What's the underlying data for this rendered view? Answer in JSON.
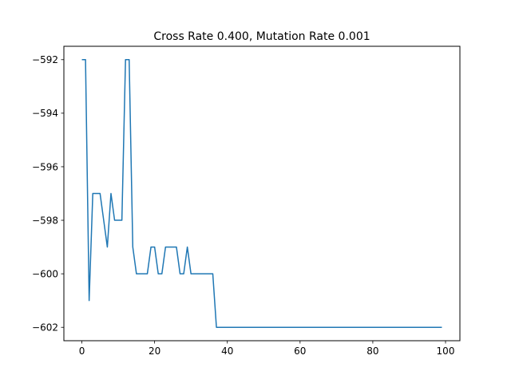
{
  "chart_data": {
    "type": "line",
    "title": "Cross Rate 0.400, Mutation Rate 0.001",
    "xlabel": "",
    "ylabel": "",
    "xlim": [
      -4.95,
      103.95
    ],
    "ylim": [
      -602.5,
      -591.5
    ],
    "xticks": [
      0,
      20,
      40,
      60,
      80,
      100
    ],
    "yticks": [
      -592,
      -594,
      -596,
      -598,
      -600,
      -602
    ],
    "xtick_labels": [
      "0",
      "20",
      "40",
      "60",
      "80",
      "100"
    ],
    "ytick_labels": [
      "−592",
      "−594",
      "−596",
      "−598",
      "−600",
      "−602"
    ],
    "grid": false,
    "line_color": "#1f77b4",
    "series": [
      {
        "x": [
          0,
          1,
          2,
          3,
          4,
          5,
          6,
          7,
          8,
          9,
          10,
          11,
          12,
          13,
          14,
          15,
          16,
          17,
          18,
          19,
          20,
          21,
          22,
          23,
          24,
          25,
          26,
          27,
          28,
          29,
          30,
          31,
          32,
          33,
          34,
          35,
          36,
          37,
          38,
          39,
          40,
          41,
          42,
          43,
          44,
          45,
          46,
          47,
          48,
          49,
          50,
          51,
          52,
          53,
          54,
          55,
          56,
          57,
          58,
          59,
          60,
          61,
          62,
          63,
          64,
          65,
          66,
          67,
          68,
          69,
          70,
          71,
          72,
          73,
          74,
          75,
          76,
          77,
          78,
          79,
          80,
          81,
          82,
          83,
          84,
          85,
          86,
          87,
          88,
          89,
          90,
          91,
          92,
          93,
          94,
          95,
          96,
          97,
          98,
          99
        ],
        "y": [
          -592,
          -592,
          -601,
          -597,
          -597,
          -597,
          -598,
          -599,
          -597,
          -598,
          -598,
          -598,
          -592,
          -592,
          -599,
          -600,
          -600,
          -600,
          -600,
          -599,
          -599,
          -600,
          -600,
          -599,
          -599,
          -599,
          -599,
          -600,
          -600,
          -599,
          -600,
          -600,
          -600,
          -600,
          -600,
          -600,
          -600,
          -602,
          -602,
          -602,
          -602,
          -602,
          -602,
          -602,
          -602,
          -602,
          -602,
          -602,
          -602,
          -602,
          -602,
          -602,
          -602,
          -602,
          -602,
          -602,
          -602,
          -602,
          -602,
          -602,
          -602,
          -602,
          -602,
          -602,
          -602,
          -602,
          -602,
          -602,
          -602,
          -602,
          -602,
          -602,
          -602,
          -602,
          -602,
          -602,
          -602,
          -602,
          -602,
          -602,
          -602,
          -602,
          -602,
          -602,
          -602,
          -602,
          -602,
          -602,
          -602,
          -602,
          -602,
          -602,
          -602,
          -602,
          -602,
          -602,
          -602,
          -602,
          -602,
          -602
        ]
      }
    ]
  }
}
